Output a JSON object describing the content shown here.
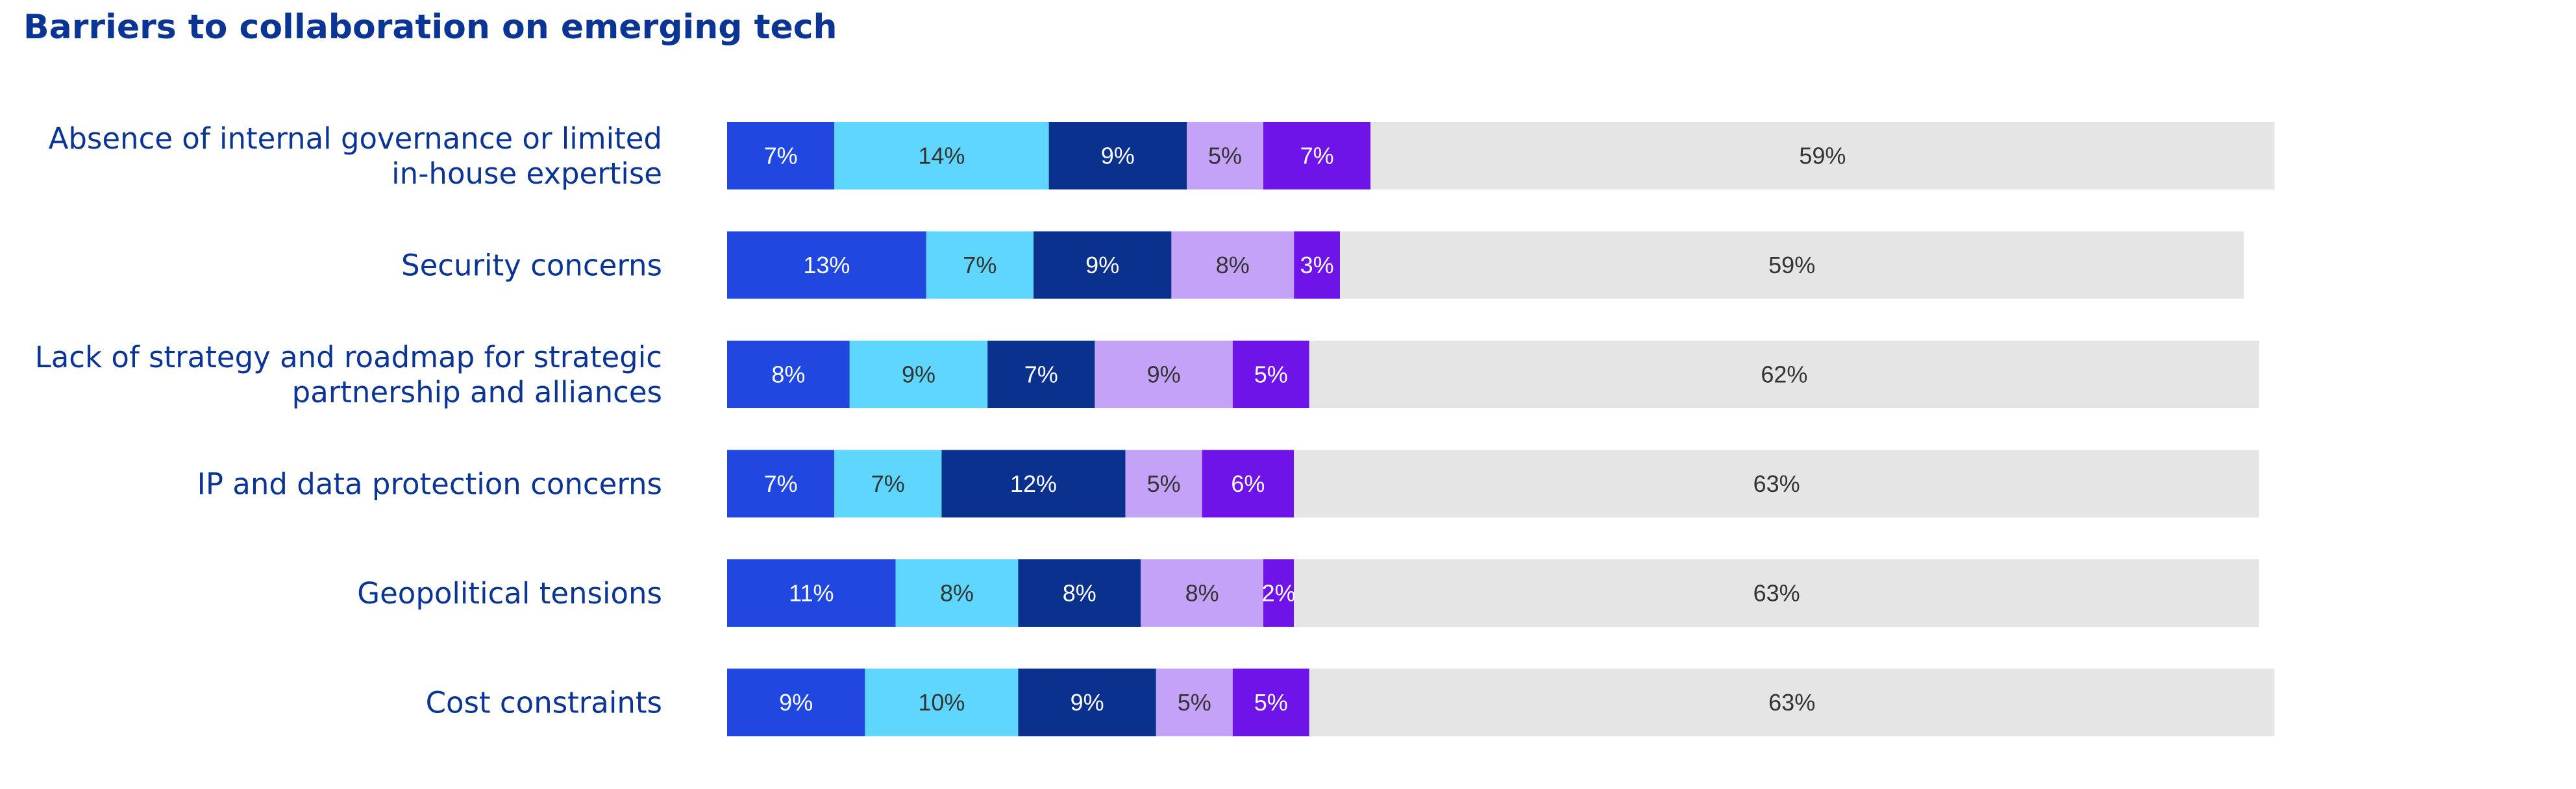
{
  "chart_data": {
    "type": "bar",
    "orientation": "horizontal",
    "stacked": true,
    "title": "Barriers to collaboration on emerging tech",
    "categories": [
      [
        "Absence of internal governance or limited",
        "in-house expertise"
      ],
      [
        "Security concerns"
      ],
      [
        "Lack of strategy and roadmap for strategic",
        "partnership and alliances"
      ],
      [
        "IP and data protection concerns"
      ],
      [
        "Geopolitical tensions"
      ],
      [
        "Cost constraints"
      ]
    ],
    "series": [
      {
        "values": [
          7,
          13,
          8,
          7,
          11,
          9
        ],
        "labels": [
          "7%",
          "13%",
          "8%",
          "7%",
          "11%",
          "9%"
        ],
        "color": "#2047e0",
        "label_color": "#ffffff"
      },
      {
        "values": [
          14,
          7,
          9,
          7,
          8,
          10
        ],
        "labels": [
          "14%",
          "7%",
          "9%",
          "7%",
          "8%",
          "10%"
        ],
        "color": "#5fd6fd",
        "label_color": "#333333"
      },
      {
        "values": [
          9,
          9,
          7,
          12,
          8,
          9
        ],
        "labels": [
          "9%",
          "9%",
          "7%",
          "12%",
          "8%",
          "9%"
        ],
        "color": "#0b318f",
        "label_color": "#ffffff"
      },
      {
        "values": [
          5,
          8,
          9,
          5,
          8,
          5
        ],
        "labels": [
          "5%",
          "8%",
          "9%",
          "5%",
          "8%",
          "5%"
        ],
        "color": "#c4a2f7",
        "label_color": "#333333"
      },
      {
        "values": [
          7,
          3,
          5,
          6,
          2,
          5
        ],
        "labels": [
          "7%",
          "3%",
          "5%",
          "6%",
          "2%",
          "5%"
        ],
        "color": "#6f14e9",
        "label_color": "#ffffff"
      },
      {
        "values": [
          59,
          59,
          62,
          63,
          63,
          63
        ],
        "labels": [
          "59%",
          "59%",
          "62%",
          "63%",
          "63%",
          "63%"
        ],
        "color": "#e5e5e5",
        "label_color": "#333333"
      }
    ],
    "xlim": [
      0,
      101
    ],
    "grid": false,
    "legend": "none",
    "category_label_color": "#0b3594"
  }
}
